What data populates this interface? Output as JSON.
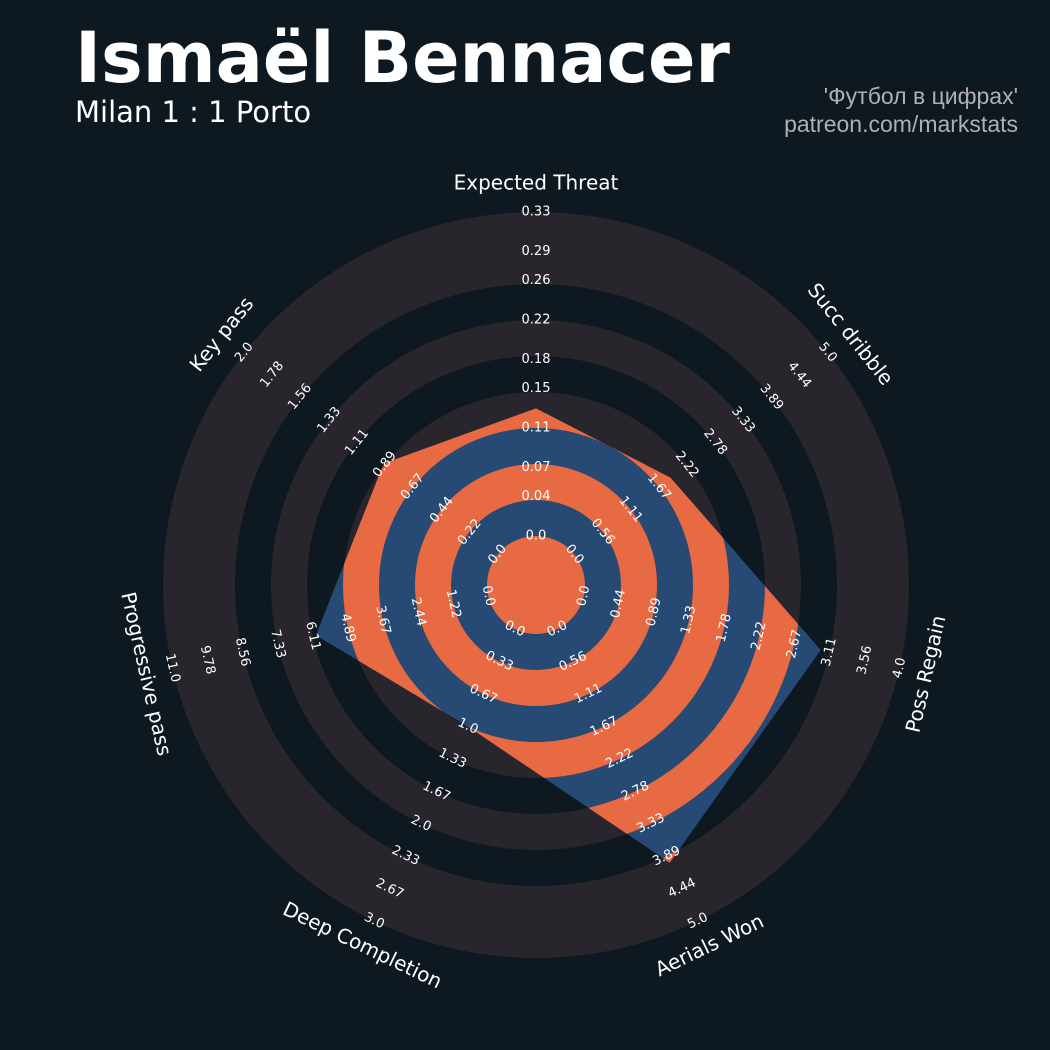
{
  "chart_data": {
    "type": "radar",
    "title": "Ismaël Bennacer",
    "subtitle": "Milan 1 : 1 Porto",
    "credits": [
      "'Футбол в цифрах'",
      "patreon.com/markstats"
    ],
    "colors": {
      "background": "#0e1821",
      "ring": "#28252c",
      "area": "#274a75",
      "highlight": "#e86a43"
    },
    "axes": [
      {
        "name": "Expected Threat",
        "lim": [
          0,
          0.33
        ],
        "ticks": [
          {
            "value": 0,
            "label": "0.0"
          },
          0.04,
          0.07,
          0.11,
          0.15,
          0.18,
          0.22,
          0.26,
          0.29,
          0.33
        ]
      },
      {
        "name": "Succ dribble",
        "lim": [
          0,
          5
        ],
        "ticks": [
          {
            "value": 0,
            "label": "0.0"
          },
          0.56,
          1.11,
          1.67,
          2.22,
          2.78,
          3.33,
          3.89,
          4.44,
          {
            "value": 5,
            "label": "5.0"
          }
        ]
      },
      {
        "name": "Poss Regain",
        "lim": [
          0,
          4
        ],
        "ticks": [
          {
            "value": 0,
            "label": "0.0"
          },
          0.44,
          0.89,
          1.33,
          1.78,
          2.22,
          2.67,
          3.11,
          3.56,
          {
            "value": 4,
            "label": "4.0"
          }
        ]
      },
      {
        "name": "Aerials Won",
        "lim": [
          0,
          5
        ],
        "ticks": [
          {
            "value": 0,
            "label": "0.0"
          },
          0.56,
          1.11,
          1.67,
          2.22,
          2.78,
          3.33,
          3.89,
          4.44,
          {
            "value": 5,
            "label": "5.0"
          }
        ]
      },
      {
        "name": "Deep Completion",
        "lim": [
          0,
          3
        ],
        "ticks": [
          {
            "value": 0,
            "label": "0.0"
          },
          0.33,
          0.67,
          {
            "value": 1,
            "label": "1.0"
          },
          1.33,
          1.67,
          {
            "value": 2,
            "label": "2.0"
          },
          2.33,
          2.67,
          {
            "value": 3,
            "label": "3.0"
          }
        ]
      },
      {
        "name": "Progressive pass",
        "lim": [
          0,
          11
        ],
        "ticks": [
          {
            "value": 0,
            "label": "0.0"
          },
          1.22,
          2.44,
          3.67,
          4.89,
          6.11,
          7.33,
          8.56,
          9.78,
          {
            "value": 11,
            "label": "11.0"
          }
        ]
      },
      {
        "name": "Key pass",
        "lim": [
          0,
          2
        ],
        "ticks": [
          {
            "value": 0,
            "label": "0.0"
          },
          0.22,
          0.44,
          0.67,
          0.89,
          1.11,
          1.33,
          1.56,
          1.78,
          {
            "value": 2,
            "label": "2.0"
          }
        ]
      }
    ],
    "values": [
      0.13,
      1.9,
      3.0,
      4.0,
      1.0,
      6.0,
      0.9
    ]
  }
}
